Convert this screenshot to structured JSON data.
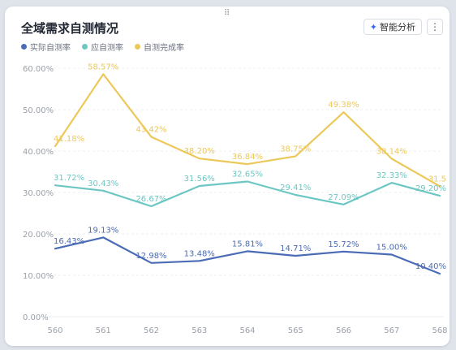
{
  "header": {
    "title": "全域需求自测情况",
    "drag_handle": "⠿",
    "ai_button_label": "智能分析",
    "ai_icon": "sparkle-icon",
    "more_icon": "more-vertical-icon",
    "more_glyph": "⋮"
  },
  "colors": {
    "actual": "#4a6bb5",
    "expected": "#6cc7c3",
    "completion": "#ecc85a",
    "grid": "#e9ecf0",
    "tick": "#9aa0aa"
  },
  "chart_data": {
    "type": "line",
    "title": "全域需求自测情况",
    "x": [
      "560",
      "561",
      "562",
      "563",
      "564",
      "565",
      "566",
      "567",
      "568"
    ],
    "ylim": [
      0,
      60
    ],
    "yticks": [
      "0.00%",
      "10.00%",
      "20.00%",
      "30.00%",
      "40.00%",
      "50.00%",
      "60.00%"
    ],
    "grid": true,
    "legend_position": "top-left",
    "series": [
      {
        "name": "实际自测率",
        "color": "#4a6bb5",
        "values": [
          16.43,
          19.13,
          12.98,
          13.48,
          15.81,
          14.71,
          15.72,
          15.0,
          10.4
        ],
        "labels": [
          "16.43%",
          "19.13%",
          "12.98%",
          "13.48%",
          "15.81%",
          "14.71%",
          "15.72%",
          "15.00%",
          "10.40%"
        ]
      },
      {
        "name": "应自测率",
        "color": "#6cc7c3",
        "values": [
          31.72,
          30.43,
          26.67,
          31.56,
          32.65,
          29.41,
          27.09,
          32.33,
          29.2
        ],
        "labels": [
          "31.72%",
          "30.43%",
          "26.67%",
          "31.56%",
          "32.65%",
          "29.41%",
          "27.09%",
          "32.33%",
          "29.20%"
        ]
      },
      {
        "name": "自测完成率",
        "color": "#ecc85a",
        "values": [
          41.18,
          58.57,
          43.42,
          38.2,
          36.84,
          38.75,
          49.38,
          38.14,
          31.5
        ],
        "labels": [
          "41.18%",
          "58.57%",
          "43.42%",
          "38.20%",
          "36.84%",
          "38.75%",
          "49.38%",
          "38.14%",
          "31.5"
        ]
      }
    ]
  }
}
